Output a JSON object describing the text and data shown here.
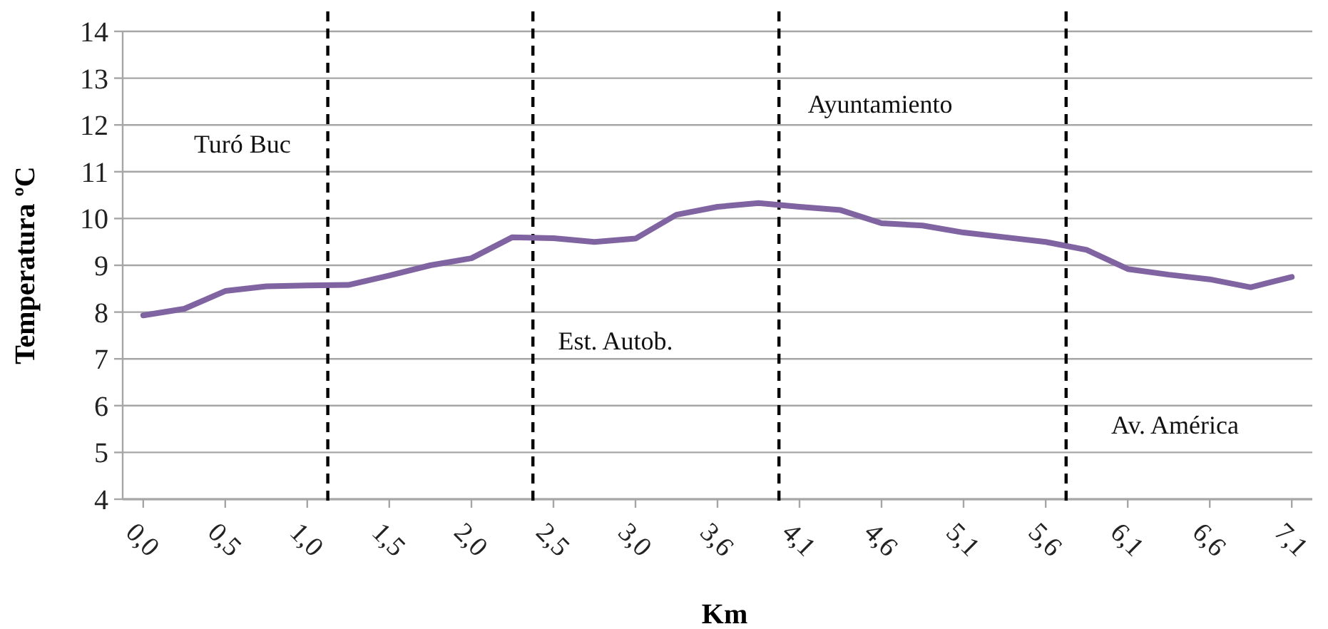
{
  "chart_data": {
    "type": "line",
    "xlabel": "Km",
    "ylabel": "Temperatura ºC",
    "x": [
      0,
      0.254,
      0.507,
      0.761,
      1.014,
      1.268,
      1.521,
      1.775,
      2.029,
      2.282,
      2.536,
      2.789,
      3.043,
      3.296,
      3.55,
      3.804,
      4.057,
      4.311,
      4.564,
      4.818,
      5.071,
      5.325,
      5.579,
      5.832,
      6.086,
      6.339,
      6.593,
      6.846,
      7.1
    ],
    "series": [
      {
        "color": "#8064a2",
        "values": [
          7.93,
          8.07,
          8.45,
          8.55,
          8.57,
          8.58,
          8.78,
          9.0,
          9.15,
          9.6,
          9.58,
          9.5,
          9.57,
          10.08,
          10.25,
          10.33,
          10.25,
          10.18,
          9.9,
          9.85,
          9.7,
          9.6,
          9.5,
          9.33,
          8.92,
          8.8,
          8.7,
          8.53,
          8.75
        ]
      }
    ],
    "xlim": [
      -0.127,
      7.227
    ],
    "xticks": [
      {
        "value": 0,
        "label": "0,0"
      },
      {
        "value": 0.507,
        "label": "0,5"
      },
      {
        "value": 1.014,
        "label": "1,0"
      },
      {
        "value": 1.521,
        "label": "1,5"
      },
      {
        "value": 2.029,
        "label": "2,0"
      },
      {
        "value": 2.536,
        "label": "2,5"
      },
      {
        "value": 3.043,
        "label": "3,0"
      },
      {
        "value": 3.55,
        "label": "3,6"
      },
      {
        "value": 4.057,
        "label": "4,1"
      },
      {
        "value": 4.564,
        "label": "4,6"
      },
      {
        "value": 5.071,
        "label": "5,1"
      },
      {
        "value": 5.579,
        "label": "5,6"
      },
      {
        "value": 6.086,
        "label": "6,1"
      },
      {
        "value": 6.593,
        "label": "6,6"
      },
      {
        "value": 7.1,
        "label": "7,1"
      }
    ],
    "ylim": [
      4,
      14
    ],
    "yticks": [
      4,
      5,
      6,
      7,
      8,
      9,
      10,
      11,
      12,
      13,
      14
    ],
    "grid": "y",
    "marker": "none",
    "line_style": "solid",
    "ref_lines": [
      {
        "axis": "x",
        "value": 1.141,
        "line_style": "dashed",
        "color": "#000000"
      },
      {
        "axis": "x",
        "value": 2.409,
        "line_style": "dashed",
        "color": "#000000"
      },
      {
        "axis": "x",
        "value": 3.93,
        "line_style": "dashed",
        "color": "#000000"
      },
      {
        "axis": "x",
        "value": 5.705,
        "line_style": "dashed",
        "color": "#000000"
      }
    ],
    "annotations": [
      "Turó Buc",
      "Est. Autob.",
      "Ayuntamiento",
      "Av. América"
    ]
  }
}
